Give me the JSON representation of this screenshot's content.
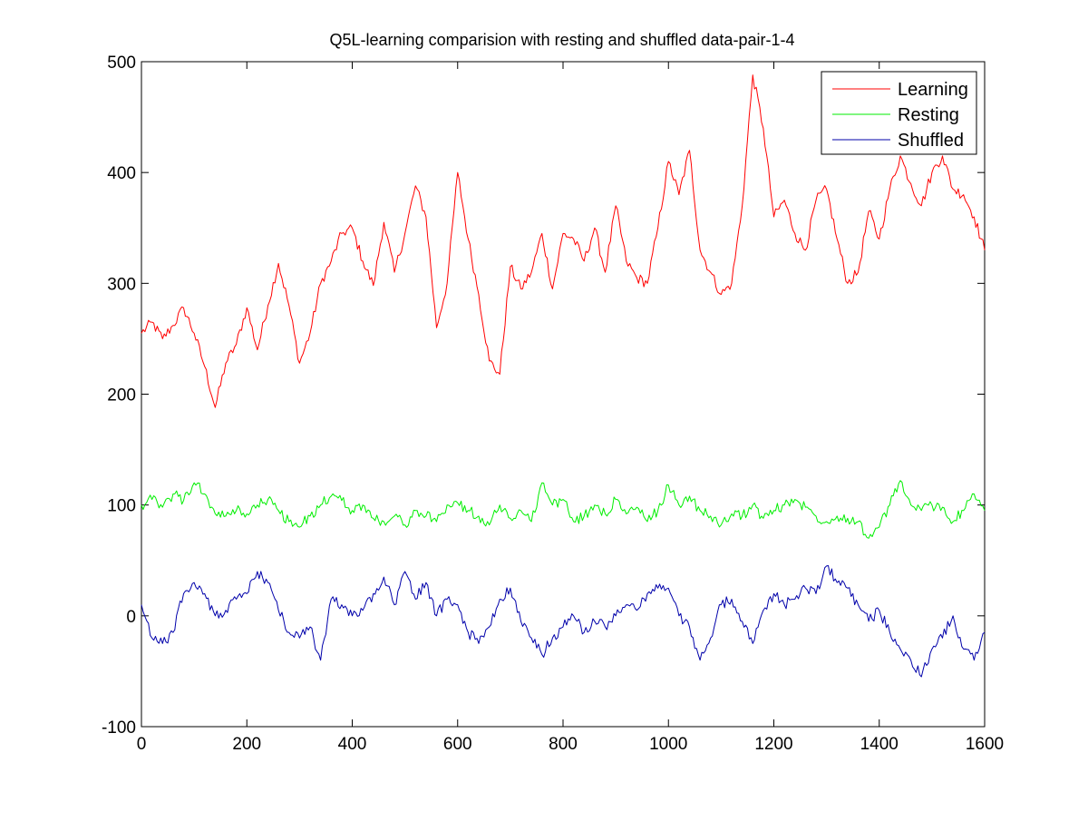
{
  "chart_data": {
    "type": "line",
    "title": "Q5L-learning comparision with resting and shuffled data-pair-1-4",
    "xlabel": "",
    "ylabel": "",
    "xlim": [
      0,
      1600
    ],
    "ylim": [
      -100,
      500
    ],
    "xticks": [
      0,
      200,
      400,
      600,
      800,
      1000,
      1200,
      1400,
      1600
    ],
    "yticks": [
      -100,
      0,
      100,
      200,
      300,
      400,
      500
    ],
    "xtick_labels": [
      "0",
      "200",
      "400",
      "600",
      "800",
      "1000",
      "1200",
      "1400",
      "1600"
    ],
    "ytick_labels": [
      "-100",
      "0",
      "100",
      "200",
      "300",
      "400",
      "500"
    ],
    "legend_position": "top-right",
    "x": [
      0,
      20,
      40,
      60,
      80,
      100,
      120,
      140,
      160,
      180,
      200,
      220,
      240,
      260,
      280,
      300,
      320,
      340,
      360,
      380,
      400,
      420,
      440,
      460,
      480,
      500,
      520,
      540,
      560,
      580,
      600,
      620,
      640,
      660,
      680,
      700,
      720,
      740,
      760,
      780,
      800,
      820,
      840,
      860,
      880,
      900,
      920,
      940,
      960,
      980,
      1000,
      1020,
      1040,
      1060,
      1080,
      1100,
      1120,
      1140,
      1160,
      1180,
      1200,
      1220,
      1240,
      1260,
      1280,
      1300,
      1320,
      1340,
      1360,
      1380,
      1400,
      1420,
      1440,
      1460,
      1480,
      1500,
      1520,
      1540,
      1560,
      1580,
      1600
    ],
    "series": [
      {
        "name": "Learning",
        "color": "#ff0000",
        "values": [
          255,
          265,
          250,
          262,
          278,
          255,
          225,
          188,
          228,
          245,
          278,
          240,
          280,
          318,
          280,
          228,
          255,
          300,
          320,
          345,
          350,
          320,
          298,
          355,
          310,
          345,
          388,
          360,
          260,
          300,
          400,
          340,
          290,
          230,
          218,
          315,
          295,
          310,
          345,
          295,
          345,
          340,
          320,
          350,
          310,
          370,
          320,
          305,
          300,
          350,
          410,
          380,
          420,
          330,
          310,
          290,
          300,
          370,
          488,
          440,
          360,
          375,
          345,
          330,
          375,
          385,
          340,
          300,
          310,
          365,
          340,
          385,
          415,
          390,
          370,
          400,
          415,
          385,
          380,
          360,
          330
        ]
      },
      {
        "name": "Resting",
        "color": "#00ee00",
        "values": [
          100,
          105,
          98,
          110,
          104,
          120,
          110,
          92,
          90,
          95,
          92,
          100,
          105,
          95,
          85,
          80,
          90,
          100,
          108,
          104,
          95,
          100,
          88,
          85,
          90,
          82,
          95,
          90,
          85,
          100,
          102,
          95,
          90,
          82,
          100,
          88,
          95,
          85,
          120,
          100,
          105,
          85,
          90,
          100,
          92,
          105,
          92,
          98,
          85,
          95,
          118,
          100,
          108,
          95,
          90,
          82,
          92,
          90,
          100,
          88,
          95,
          100,
          105,
          98,
          90,
          85,
          90,
          88,
          85,
          70,
          80,
          100,
          122,
          100,
          95,
          100,
          98,
          85,
          95,
          110,
          95
        ]
      },
      {
        "name": "Shuffled",
        "color": "#0000aa",
        "values": [
          10,
          -20,
          -25,
          -15,
          20,
          30,
          20,
          0,
          5,
          15,
          20,
          40,
          30,
          5,
          -15,
          -20,
          -10,
          -40,
          15,
          10,
          0,
          5,
          20,
          35,
          10,
          40,
          15,
          30,
          0,
          15,
          10,
          -15,
          -25,
          -10,
          15,
          25,
          -5,
          -20,
          -35,
          -20,
          -10,
          0,
          -15,
          -5,
          -10,
          0,
          10,
          5,
          20,
          25,
          25,
          0,
          -10,
          -40,
          -20,
          10,
          15,
          -5,
          -25,
          5,
          20,
          10,
          15,
          25,
          20,
          45,
          30,
          25,
          10,
          -5,
          5,
          -15,
          -30,
          -40,
          -55,
          -30,
          -20,
          0,
          -30,
          -40,
          -15
        ]
      }
    ]
  }
}
